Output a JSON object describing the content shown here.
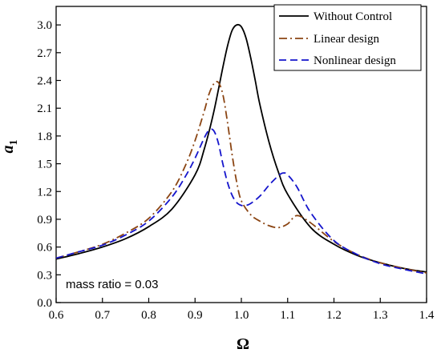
{
  "chart_data": {
    "type": "line",
    "xlabel": "Ω",
    "ylabel": "a",
    "ylabel_subscript": "1",
    "xlim": [
      0.6,
      1.4
    ],
    "ylim": [
      0.0,
      3.2
    ],
    "xticks": [
      "0.6",
      "0.7",
      "0.8",
      "0.9",
      "1.0",
      "1.1",
      "1.2",
      "1.3",
      "1.4"
    ],
    "yticks": [
      "0.0",
      "0.3",
      "0.6",
      "0.9",
      "1.2",
      "1.5",
      "1.8",
      "2.1",
      "2.4",
      "2.7",
      "3.0"
    ],
    "grid": false,
    "legend_position": "top-right",
    "annotation": "mass ratio = 0.03",
    "series": [
      {
        "name": "Without Control",
        "color": "#000000",
        "style": "solid",
        "x": [
          0.6,
          0.65,
          0.7,
          0.75,
          0.8,
          0.85,
          0.9,
          0.92,
          0.94,
          0.96,
          0.97,
          0.98,
          0.99,
          1.0,
          1.01,
          1.02,
          1.03,
          1.04,
          1.06,
          1.08,
          1.1,
          1.15,
          1.2,
          1.25,
          1.3,
          1.35,
          1.4
        ],
        "y": [
          0.47,
          0.53,
          0.6,
          0.69,
          0.82,
          1.01,
          1.38,
          1.66,
          2.05,
          2.54,
          2.77,
          2.94,
          3.0,
          2.98,
          2.86,
          2.65,
          2.4,
          2.14,
          1.73,
          1.41,
          1.17,
          0.81,
          0.63,
          0.51,
          0.43,
          0.37,
          0.33
        ]
      },
      {
        "name": "Linear design",
        "color": "#8B4513",
        "style": "dashdot",
        "x": [
          0.6,
          0.65,
          0.7,
          0.75,
          0.8,
          0.85,
          0.88,
          0.9,
          0.92,
          0.93,
          0.94,
          0.95,
          0.96,
          0.97,
          0.98,
          0.99,
          1.0,
          1.02,
          1.04,
          1.06,
          1.08,
          1.1,
          1.12,
          1.15,
          1.2,
          1.25,
          1.3,
          1.35,
          1.4
        ],
        "y": [
          0.48,
          0.55,
          0.63,
          0.75,
          0.91,
          1.2,
          1.49,
          1.75,
          2.07,
          2.25,
          2.36,
          2.38,
          2.25,
          1.95,
          1.6,
          1.3,
          1.1,
          0.95,
          0.88,
          0.83,
          0.81,
          0.85,
          0.94,
          0.86,
          0.66,
          0.52,
          0.43,
          0.37,
          0.32
        ]
      },
      {
        "name": "Nonlinear design",
        "color": "#1515CC",
        "style": "dashed",
        "x": [
          0.6,
          0.65,
          0.7,
          0.75,
          0.8,
          0.85,
          0.88,
          0.9,
          0.92,
          0.93,
          0.94,
          0.95,
          0.96,
          0.97,
          0.98,
          0.99,
          1.0,
          1.01,
          1.02,
          1.04,
          1.06,
          1.08,
          1.09,
          1.1,
          1.12,
          1.15,
          1.2,
          1.25,
          1.3,
          1.35,
          1.4
        ],
        "y": [
          0.48,
          0.55,
          0.62,
          0.73,
          0.88,
          1.14,
          1.37,
          1.56,
          1.78,
          1.86,
          1.86,
          1.73,
          1.5,
          1.3,
          1.16,
          1.08,
          1.05,
          1.05,
          1.07,
          1.15,
          1.27,
          1.37,
          1.4,
          1.38,
          1.25,
          0.97,
          0.67,
          0.52,
          0.42,
          0.36,
          0.31
        ]
      }
    ]
  }
}
